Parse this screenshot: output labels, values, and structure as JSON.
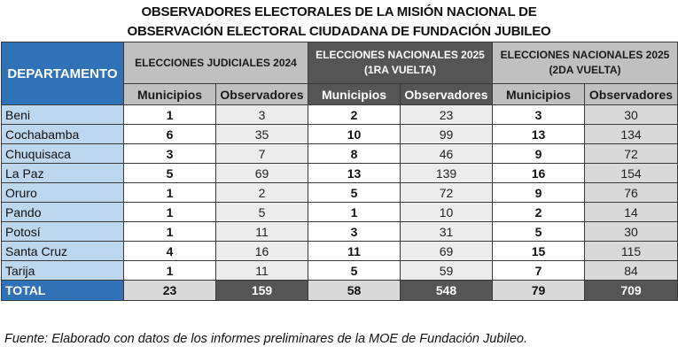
{
  "title": {
    "line1": "OBSERVADORES ELECTORALES DE LA MISIÓN NACIONAL DE",
    "line2": "OBSERVACIÓN ELECTORAL CIUDADANA DE FUNDACIÓN JUBILEO"
  },
  "table": {
    "dept_header": "DEPARTAMENTO",
    "groups": [
      {
        "line1": "ELECCIONES JUDICIALES 2024",
        "line2": ""
      },
      {
        "line1": "ELECCIONES NACIONALES 2025",
        "line2": "(1RA VUELTA)"
      },
      {
        "line1": "ELECCIONES NACIONALES 2025",
        "line2": "(2DA VUELTA)"
      }
    ],
    "sub_headers": [
      "Municipios",
      "Observadores",
      "Municipios",
      "Observadores",
      "Municipios",
      "Observadores"
    ],
    "rows": [
      {
        "dept": "Beni",
        "values": [
          "1",
          "3",
          "2",
          "23",
          "3",
          "30"
        ]
      },
      {
        "dept": "Cochabamba",
        "values": [
          "6",
          "35",
          "10",
          "99",
          "13",
          "134"
        ]
      },
      {
        "dept": "Chuquisaca",
        "values": [
          "3",
          "7",
          "8",
          "46",
          "9",
          "72"
        ]
      },
      {
        "dept": "La Paz",
        "values": [
          "5",
          "69",
          "13",
          "139",
          "16",
          "154"
        ]
      },
      {
        "dept": "Oruro",
        "values": [
          "1",
          "2",
          "5",
          "72",
          "9",
          "76"
        ]
      },
      {
        "dept": "Pando",
        "values": [
          "1",
          "5",
          "1",
          "10",
          "2",
          "14"
        ]
      },
      {
        "dept": "Potosí",
        "values": [
          "1",
          "11",
          "3",
          "31",
          "5",
          "30"
        ]
      },
      {
        "dept": "Santa Cruz",
        "values": [
          "4",
          "16",
          "11",
          "69",
          "15",
          "115"
        ]
      },
      {
        "dept": "Tarija",
        "values": [
          "1",
          "11",
          "5",
          "59",
          "7",
          "84"
        ]
      }
    ],
    "total": {
      "label": "TOTAL",
      "values": [
        "23",
        "159",
        "58",
        "548",
        "79",
        "709"
      ]
    }
  },
  "source": "Fuente: Elaborado con datos de los informes preliminares de la MOE de Fundación Jubileo.",
  "colors": {
    "dept_header": "#2f72b8",
    "dept_cells": "#bdd7ee",
    "header_light": "#c0c0c0",
    "header_dark": "#555555"
  }
}
